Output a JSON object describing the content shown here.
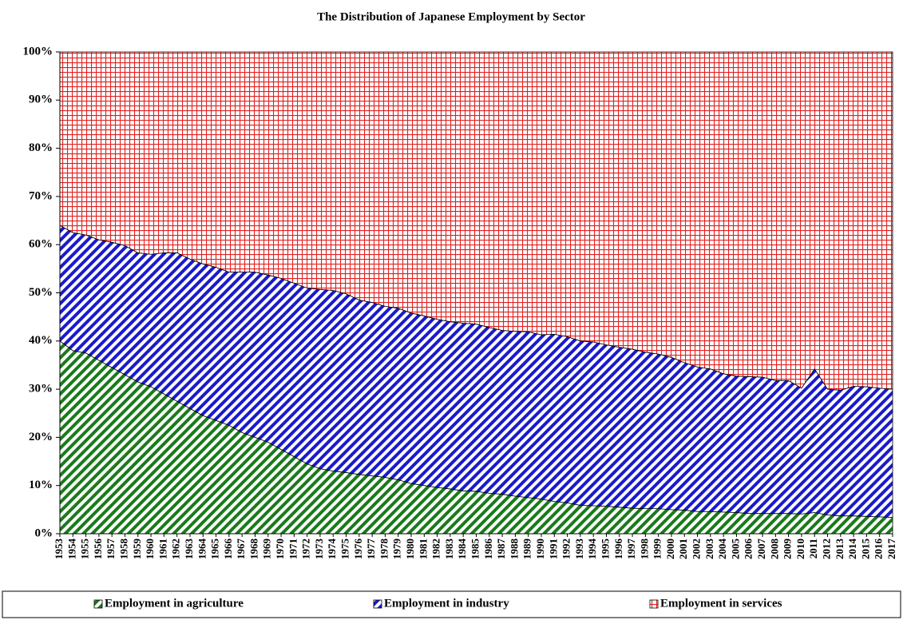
{
  "chart_data": {
    "type": "stacked_area",
    "title": "The Distribution of Japanese Employment by Sector",
    "x": [
      1953,
      1954,
      1955,
      1956,
      1957,
      1958,
      1959,
      1960,
      1961,
      1962,
      1963,
      1964,
      1965,
      1966,
      1967,
      1968,
      1969,
      1970,
      1971,
      1972,
      1973,
      1974,
      1975,
      1976,
      1977,
      1978,
      1979,
      1980,
      1981,
      1982,
      1983,
      1984,
      1985,
      1986,
      1987,
      1988,
      1989,
      1990,
      1991,
      1992,
      1993,
      1994,
      1995,
      1996,
      1997,
      1998,
      1999,
      2000,
      2001,
      2002,
      2003,
      2004,
      2005,
      2006,
      2007,
      2008,
      2009,
      2010,
      2011,
      2012,
      2013,
      2014,
      2015,
      2016,
      2017
    ],
    "series": [
      {
        "name": "Employment in agriculture",
        "color": "#1a7a1a",
        "pattern": "diagonal",
        "values": [
          40,
          38,
          37.5,
          36,
          34.5,
          33,
          31.5,
          30.5,
          29,
          27.5,
          26,
          24.5,
          23.5,
          22.5,
          21,
          20,
          19,
          17.5,
          16,
          14.5,
          13.5,
          13,
          12.7,
          12.3,
          12,
          11.7,
          11.2,
          10.4,
          10,
          9.6,
          9.3,
          8.9,
          8.8,
          8.4,
          8.2,
          7.8,
          7.5,
          7.2,
          6.7,
          6.4,
          5.9,
          5.8,
          5.7,
          5.5,
          5.3,
          5.2,
          5.2,
          5.0,
          4.9,
          4.6,
          4.6,
          4.5,
          4.4,
          4.2,
          4.2,
          4.2,
          4.2,
          4.1,
          4.4,
          3.9,
          3.7,
          3.7,
          3.6,
          3.5,
          3.4
        ]
      },
      {
        "name": "Employment in industry",
        "color": "#1a1acc",
        "pattern": "diagonal",
        "values": [
          24,
          24.5,
          24.5,
          25,
          26,
          26.8,
          26.8,
          27.5,
          29.3,
          30.8,
          31,
          31.5,
          31.8,
          31.8,
          33.3,
          34.3,
          34.7,
          35.5,
          36,
          36.5,
          37.2,
          37.5,
          37.1,
          36.2,
          36,
          35.5,
          35.6,
          35.4,
          35.2,
          34.9,
          34.7,
          34.8,
          34.7,
          34.4,
          34,
          34.2,
          34.4,
          34.1,
          34.7,
          34.5,
          34.1,
          34,
          33.5,
          33.2,
          33,
          32.5,
          32.1,
          31.6,
          30.6,
          30,
          29.6,
          28.7,
          28.3,
          28.4,
          28.3,
          27.6,
          27.6,
          26.1,
          29.8,
          26.1,
          26.1,
          26.9,
          26.9,
          26.7,
          26.6
        ]
      },
      {
        "name": "Employment in services",
        "color": "#e02020",
        "pattern": "grid",
        "values": [
          36,
          37.5,
          38,
          39,
          39.5,
          40.2,
          41.7,
          42,
          41.7,
          41.7,
          43,
          44,
          44.7,
          45.7,
          45.7,
          45.7,
          46.3,
          47,
          48,
          49,
          49.3,
          49.5,
          50.2,
          51.5,
          52,
          52.8,
          53.2,
          54.2,
          54.8,
          55.5,
          56,
          56.3,
          56.5,
          57.2,
          57.8,
          58,
          58.1,
          58.7,
          58.6,
          59.1,
          60,
          60.2,
          60.8,
          61.3,
          61.7,
          62.3,
          62.7,
          63.4,
          64.5,
          65.4,
          65.8,
          66.8,
          67.3,
          67.4,
          67.5,
          68.2,
          68.2,
          69.8,
          65.8,
          70,
          70.2,
          69.4,
          69.5,
          69.8,
          70
        ]
      }
    ],
    "xlim": [
      1953,
      2017
    ],
    "ylim": [
      0,
      100
    ],
    "yticks": [
      {
        "value": 0,
        "label": "0%"
      },
      {
        "value": 10,
        "label": "10%"
      },
      {
        "value": 20,
        "label": "20%"
      },
      {
        "value": 30,
        "label": "30%"
      },
      {
        "value": 40,
        "label": "40%"
      },
      {
        "value": 50,
        "label": "50%"
      },
      {
        "value": 60,
        "label": "60%"
      },
      {
        "value": 70,
        "label": "70%"
      },
      {
        "value": 80,
        "label": "80%"
      },
      {
        "value": 90,
        "label": "90%"
      },
      {
        "value": 100,
        "label": "100%"
      }
    ],
    "legend": "bottom"
  }
}
